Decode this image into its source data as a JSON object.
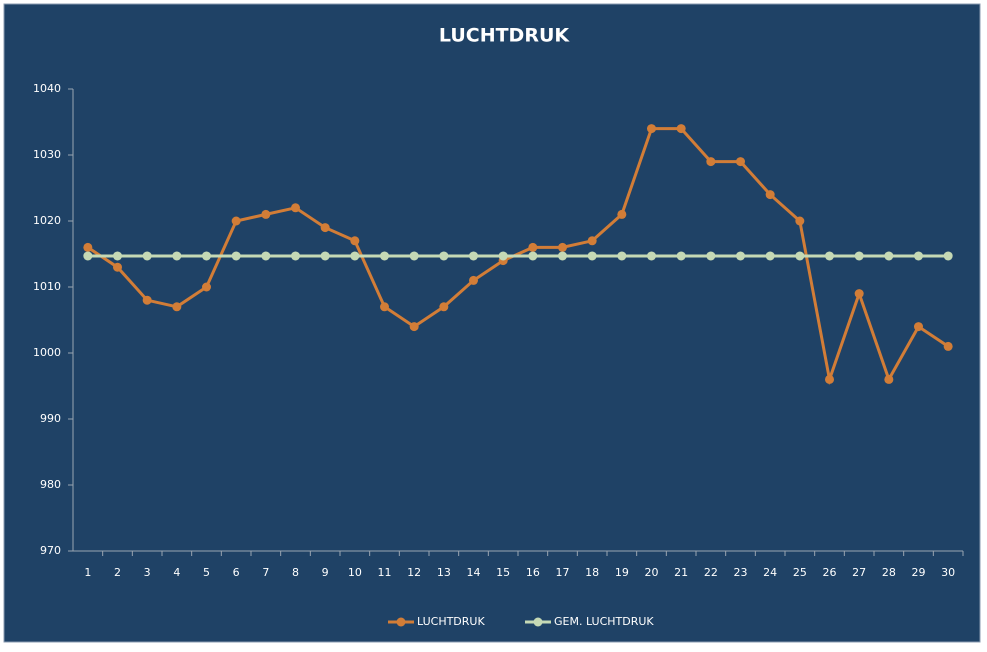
{
  "chart_data": {
    "type": "line",
    "title": "LUCHTDRUK",
    "categories": [
      "1",
      "2",
      "3",
      "4",
      "5",
      "6",
      "7",
      "8",
      "9",
      "10",
      "11",
      "12",
      "13",
      "14",
      "15",
      "16",
      "17",
      "18",
      "19",
      "20",
      "21",
      "22",
      "23",
      "24",
      "25",
      "26",
      "27",
      "28",
      "29",
      "30"
    ],
    "series": [
      {
        "name": "LUCHTDRUK",
        "color": "#d27d37",
        "values": [
          1016,
          1013,
          1008,
          1007,
          1010,
          1020,
          1021,
          1022,
          1019,
          1017,
          1007,
          1004,
          1007,
          1011,
          1014,
          1016,
          1016,
          1017,
          1021,
          1034,
          1034,
          1029,
          1029,
          1024,
          1020,
          996,
          1009,
          996,
          1004,
          1001
        ]
      },
      {
        "name": "GEM. LUCHTDRUK",
        "color": "#c5d9b5",
        "values": [
          1014.7,
          1014.7,
          1014.7,
          1014.7,
          1014.7,
          1014.7,
          1014.7,
          1014.7,
          1014.7,
          1014.7,
          1014.7,
          1014.7,
          1014.7,
          1014.7,
          1014.7,
          1014.7,
          1014.7,
          1014.7,
          1014.7,
          1014.7,
          1014.7,
          1014.7,
          1014.7,
          1014.7,
          1014.7,
          1014.7,
          1014.7,
          1014.7,
          1014.7,
          1014.7
        ]
      }
    ],
    "ylim": [
      970,
      1040
    ],
    "yticks": [
      970,
      980,
      990,
      1000,
      1010,
      1020,
      1030,
      1040
    ],
    "grid": false,
    "legend": "bottom"
  }
}
